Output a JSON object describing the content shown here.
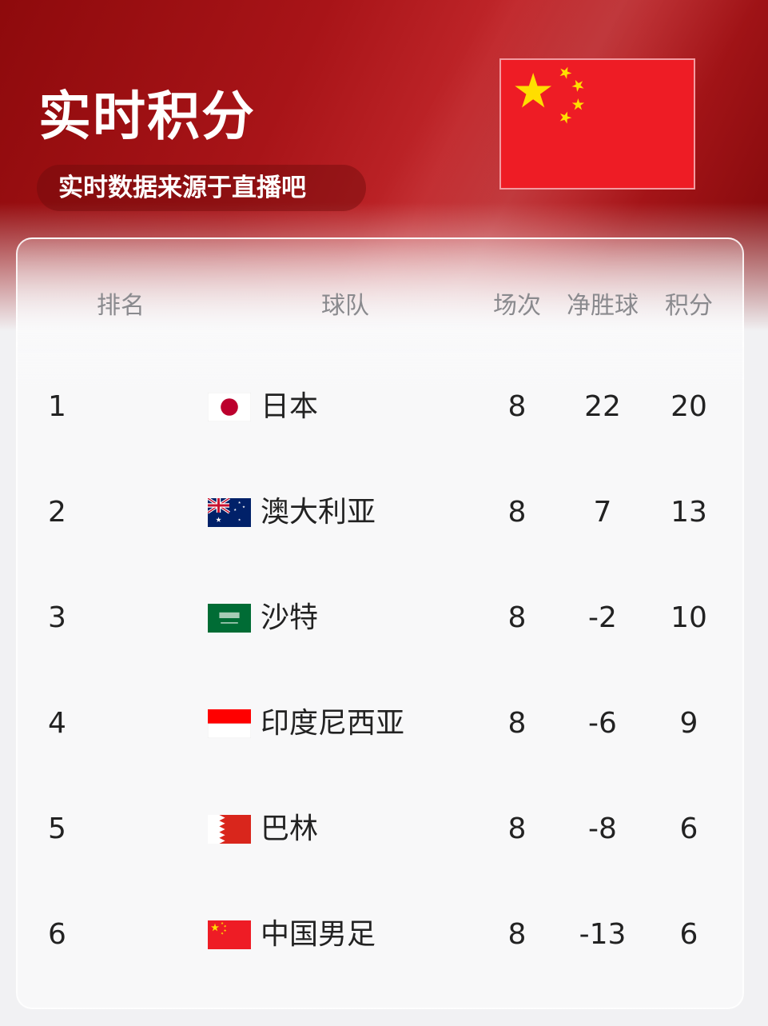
{
  "header": {
    "title": "实时积分",
    "subtitle": "实时数据来源于直播吧",
    "flag": "china-flag-icon"
  },
  "columns": {
    "rank": "排名",
    "team": "球队",
    "played": "场次",
    "gd": "净胜球",
    "points": "积分"
  },
  "rows": [
    {
      "rank": "1",
      "flag": "japan",
      "team": "日本",
      "played": "8",
      "gd": "22",
      "points": "20"
    },
    {
      "rank": "2",
      "flag": "australia",
      "team": "澳大利亚",
      "played": "8",
      "gd": "7",
      "points": "13"
    },
    {
      "rank": "3",
      "flag": "saudi",
      "team": "沙特",
      "played": "8",
      "gd": "-2",
      "points": "10"
    },
    {
      "rank": "4",
      "flag": "indonesia",
      "team": "印度尼西亚",
      "played": "8",
      "gd": "-6",
      "points": "9"
    },
    {
      "rank": "5",
      "flag": "bahrain",
      "team": "巴林",
      "played": "8",
      "gd": "-8",
      "points": "6"
    },
    {
      "rank": "6",
      "flag": "china",
      "team": "中国男足",
      "played": "8",
      "gd": "-13",
      "points": "6"
    }
  ],
  "colors": {
    "red": "#ee1c25",
    "star": "#ffde00"
  }
}
